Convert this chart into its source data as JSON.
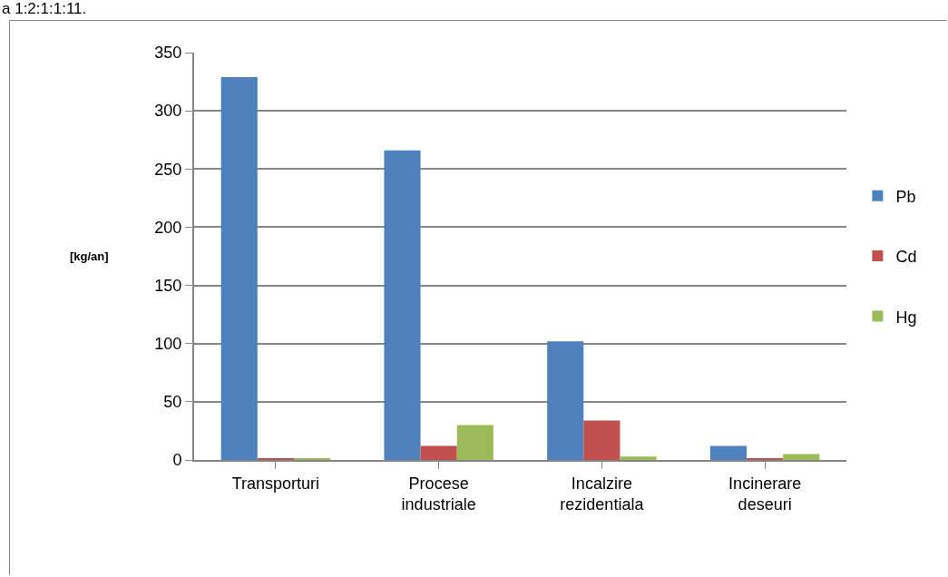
{
  "chart_data": {
    "type": "bar",
    "ylabel": "[kg/an]",
    "annotations": [
      "a 1:2:1:1:11."
    ],
    "categories": [
      "Transporturi",
      "Procese industriale",
      "Incalzire rezidentiala",
      "Incinerare deseuri"
    ],
    "series": [
      {
        "name": "Pb",
        "color": "#4f81bd",
        "values": [
          329,
          266,
          102,
          12
        ]
      },
      {
        "name": "Cd",
        "color": "#c0504d",
        "values": [
          1,
          12,
          34,
          1
        ]
      },
      {
        "name": "Hg",
        "color": "#9bbb59",
        "values": [
          1,
          30,
          3,
          5
        ]
      }
    ],
    "ylim": [
      0,
      350
    ],
    "yticks": [
      0,
      50,
      100,
      150,
      200,
      250,
      300,
      350
    ],
    "grid": "y",
    "legend": "right"
  }
}
